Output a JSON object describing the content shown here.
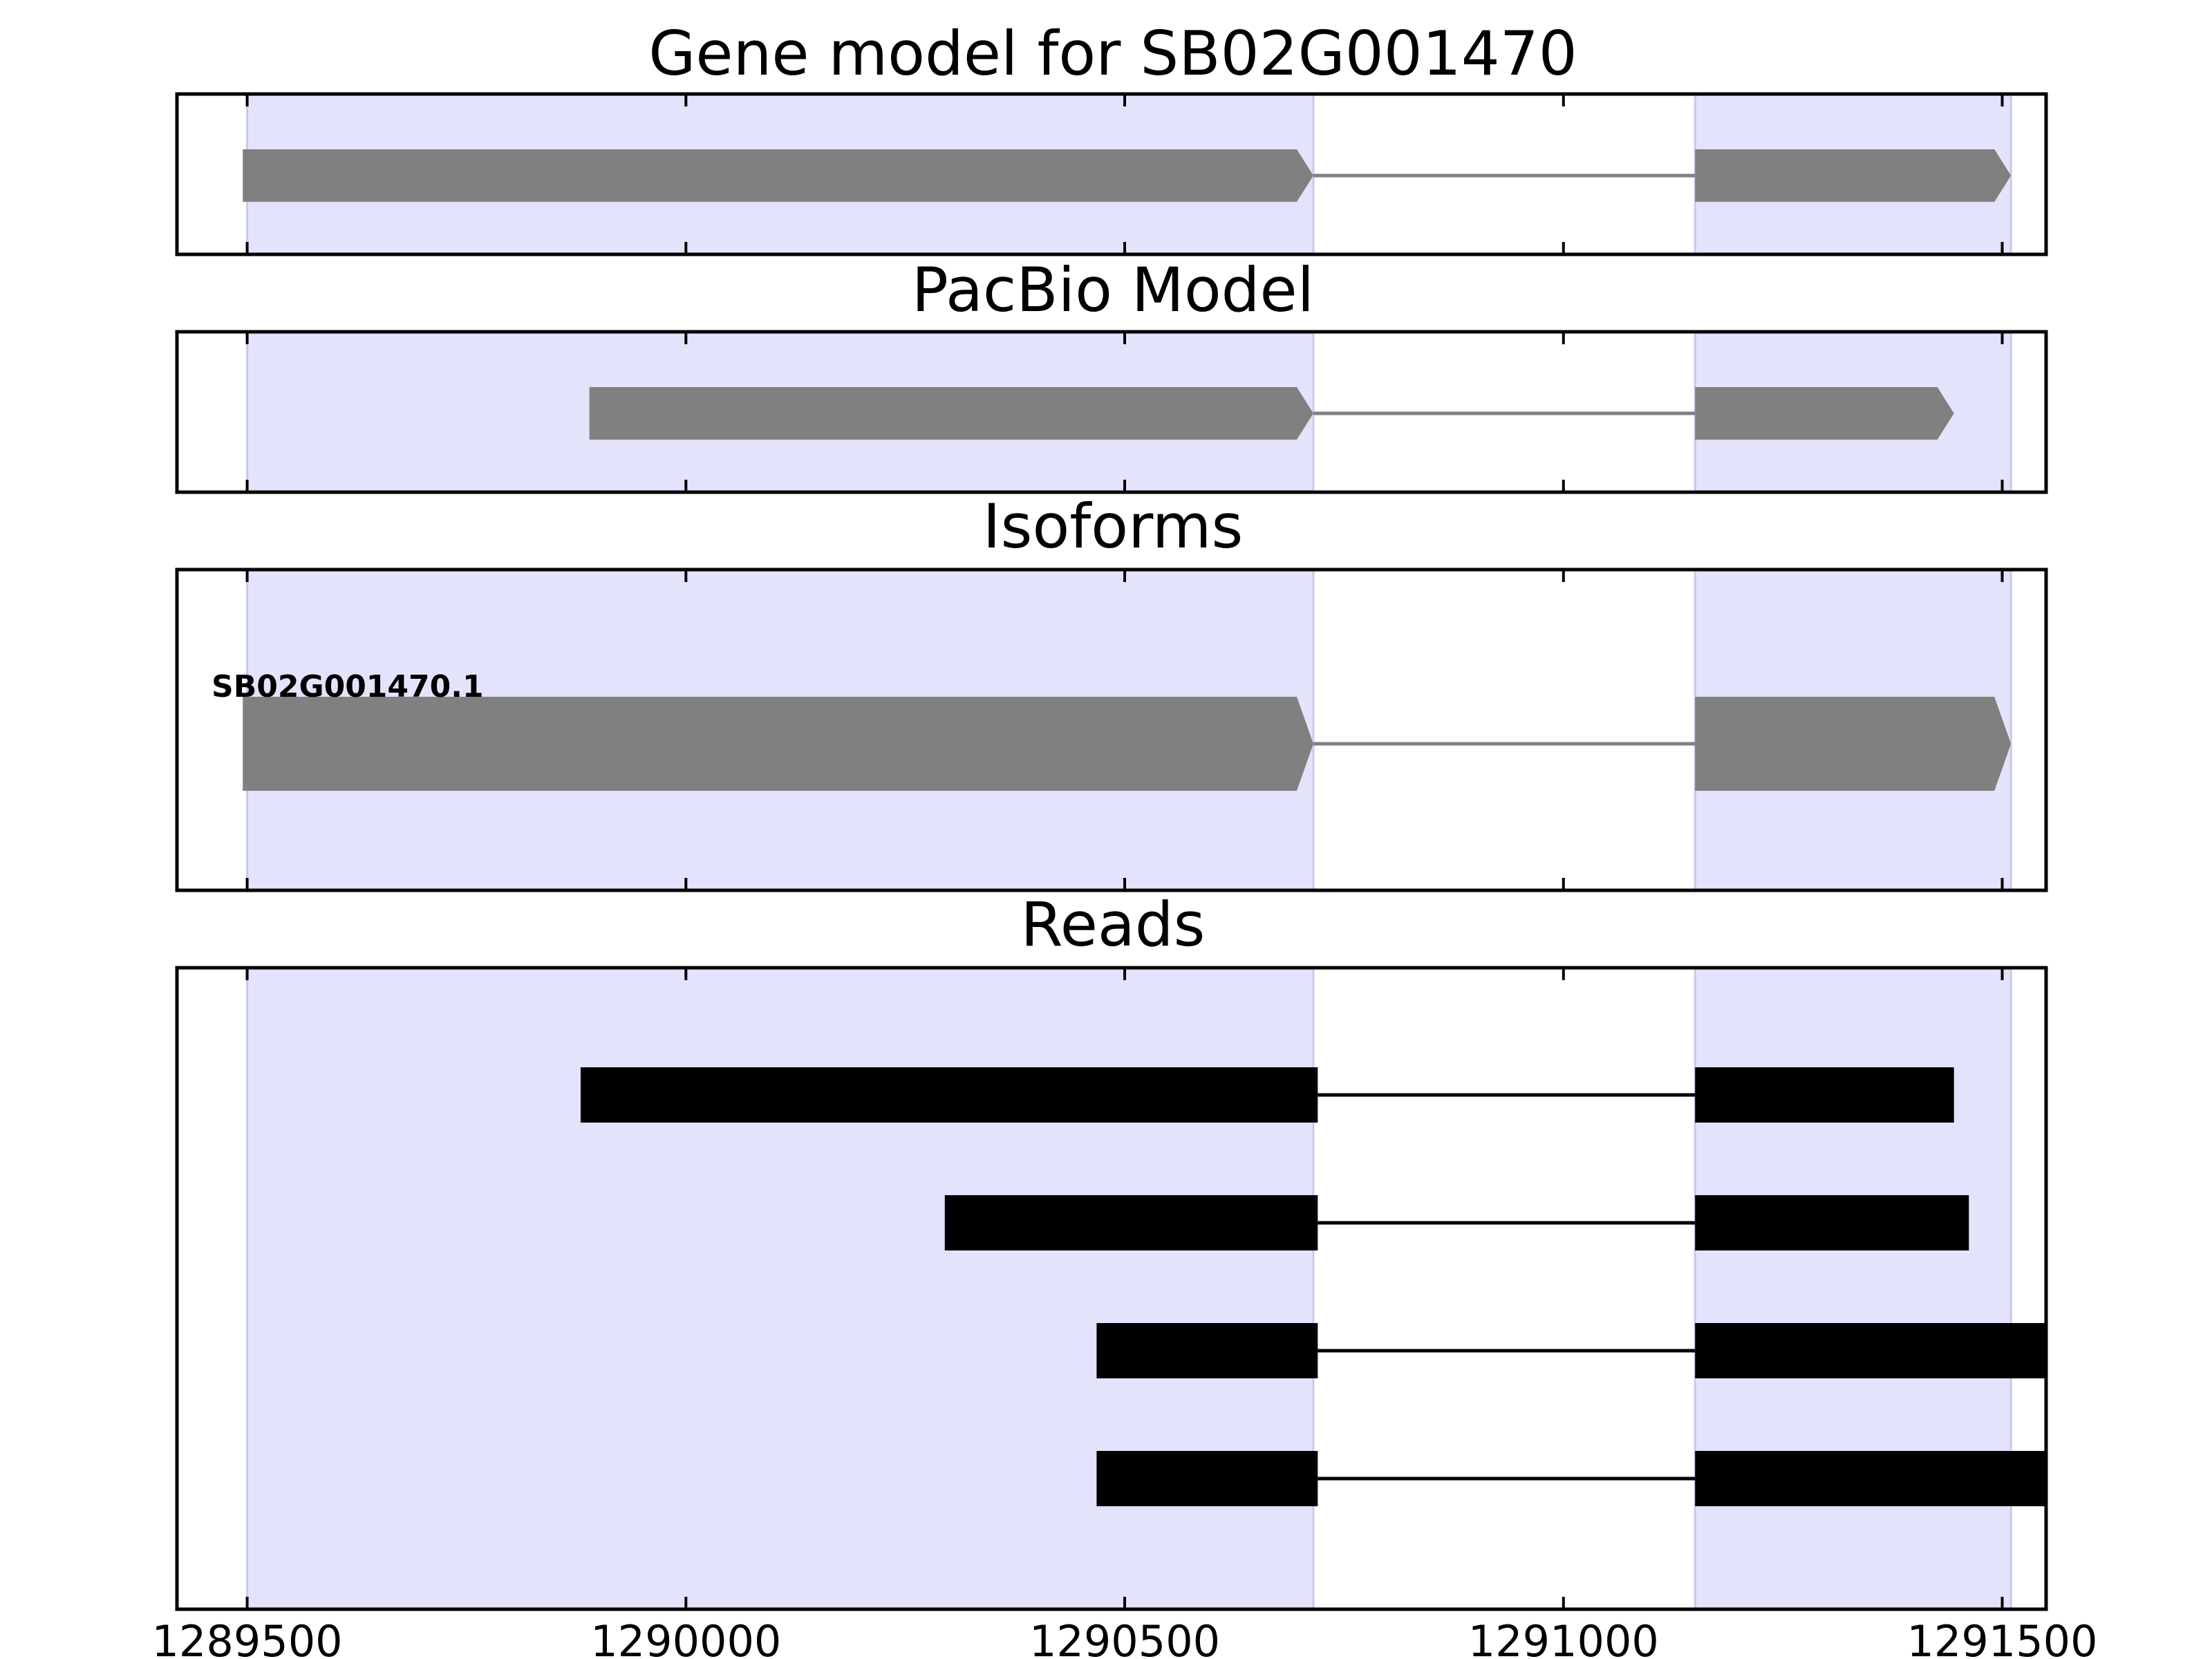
{
  "chart_data": {
    "type": "gene-track",
    "xlim": [
      1289420,
      1291550
    ],
    "xticks": [
      1289500,
      1290000,
      1290500,
      1291000,
      1291500
    ],
    "xtick_labels": [
      "1289500",
      "1290000",
      "1290500",
      "1291000",
      "1291500"
    ],
    "exon_regions": [
      [
        1289500,
        1290715
      ],
      [
        1291150,
        1291510
      ]
    ],
    "colors": {
      "highlight": "#e3e3fc",
      "highlight_edge": "#c8c8ee",
      "gene": "#808080",
      "read": "#000000",
      "frame": "#000000"
    },
    "panels": [
      {
        "id": "gene-model",
        "title": "Gene model for SB02G001470",
        "features": [
          {
            "type": "gene",
            "strand": "+",
            "exons": [
              [
                1289495,
                1290715
              ],
              [
                1291150,
                1291510
              ]
            ]
          }
        ]
      },
      {
        "id": "pacbio-model",
        "title": "PacBio Model",
        "features": [
          {
            "type": "gene",
            "strand": "+",
            "exons": [
              [
                1289890,
                1290715
              ],
              [
                1291150,
                1291445
              ]
            ]
          }
        ]
      },
      {
        "id": "isoforms",
        "title": "Isoforms",
        "features": [
          {
            "type": "gene",
            "strand": "+",
            "label": "SB02G001470.1",
            "exons": [
              [
                1289495,
                1290715
              ],
              [
                1291150,
                1291510
              ]
            ]
          }
        ]
      },
      {
        "id": "reads",
        "title": "Reads",
        "features": [
          {
            "type": "read",
            "exons": [
              [
                1289880,
                1290720
              ],
              [
                1291150,
                1291445
              ]
            ]
          },
          {
            "type": "read",
            "exons": [
              [
                1290295,
                1290720
              ],
              [
                1291150,
                1291462
              ]
            ]
          },
          {
            "type": "read",
            "exons": [
              [
                1290468,
                1290720
              ],
              [
                1291150,
                1291550
              ]
            ]
          },
          {
            "type": "read",
            "exons": [
              [
                1290468,
                1290720
              ],
              [
                1291150,
                1291550
              ]
            ]
          }
        ]
      }
    ]
  }
}
